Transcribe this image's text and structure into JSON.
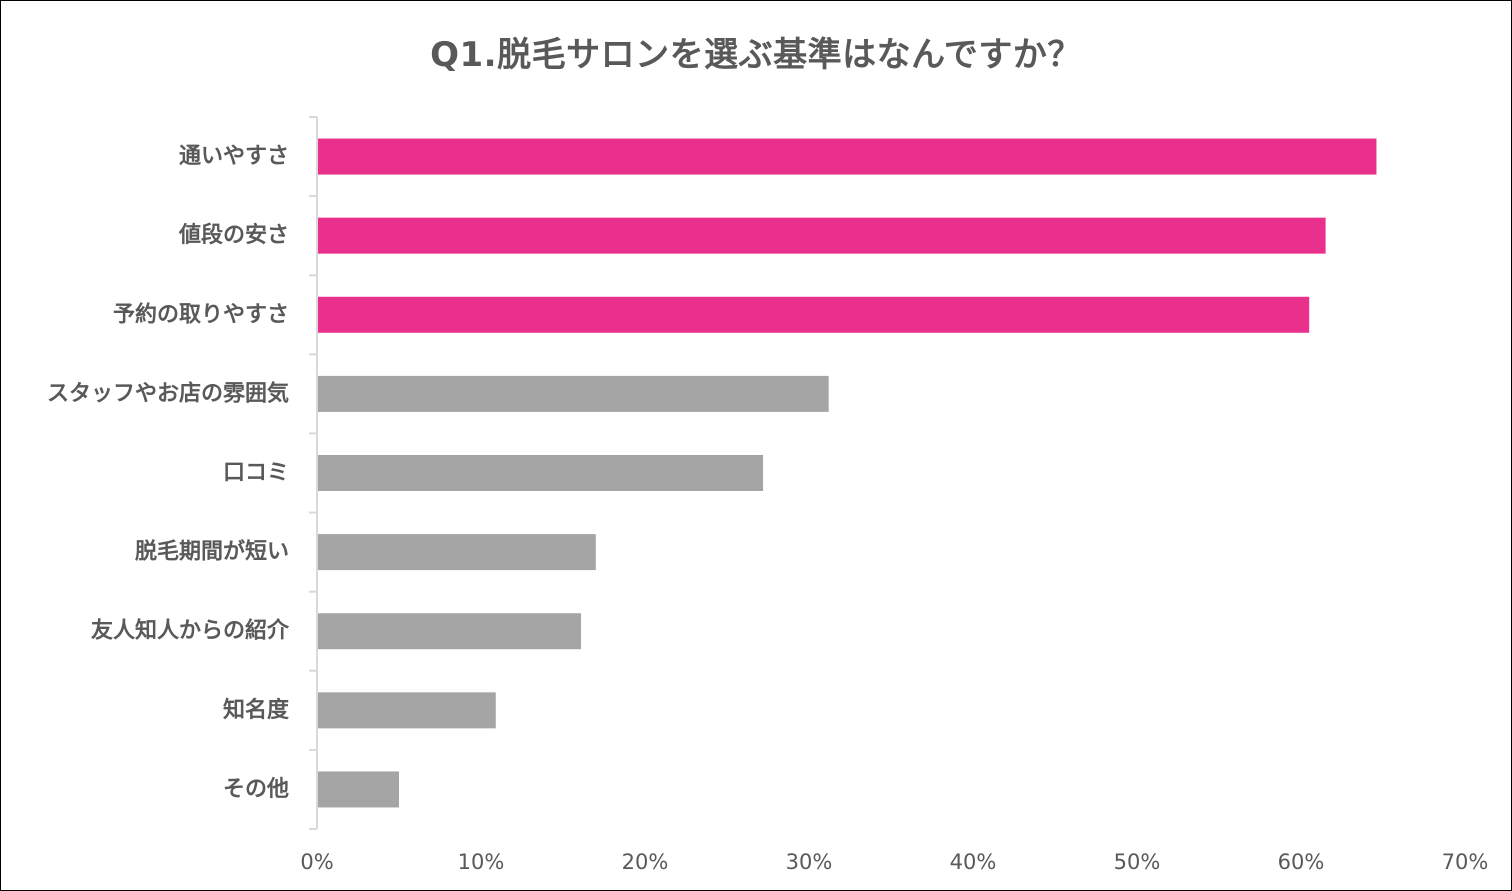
{
  "chart_data": {
    "type": "bar",
    "orientation": "horizontal",
    "title": "Q1.脱毛サロンを選ぶ基準はなんですか？",
    "categories": [
      "通いやすさ",
      "値段の安さ",
      "予約の取りやすさ",
      "スタッフやお店の雰囲気",
      "口コミ",
      "脱毛期間が短い",
      "友人知人からの紹介",
      "知名度",
      "その他"
    ],
    "values": [
      64.6,
      61.5,
      60.5,
      31.2,
      27.2,
      17.0,
      16.1,
      10.9,
      5.0
    ],
    "highlight_count": 3,
    "xlim": [
      0,
      70
    ],
    "xticks": [
      0,
      10,
      20,
      30,
      40,
      50,
      60,
      70
    ],
    "xtick_labels": [
      "0%",
      "10%",
      "20%",
      "30%",
      "40%",
      "50%",
      "60%",
      "70%"
    ],
    "grid": false,
    "colors": {
      "highlight": "#E8308C",
      "normal": "#A5A5A5",
      "axis": "#D9D9D9",
      "text": "#595959"
    }
  }
}
